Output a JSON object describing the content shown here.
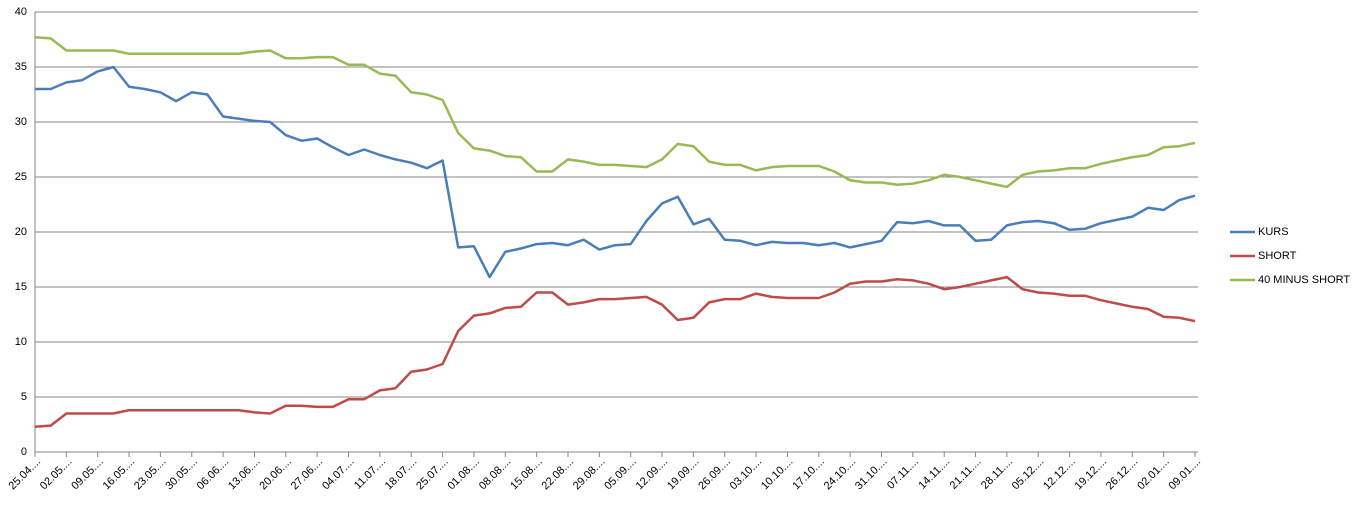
{
  "chart_data": {
    "type": "line",
    "categories": [
      "25.04....",
      null,
      "02.05....",
      null,
      "09.05....",
      null,
      "16.05....",
      null,
      "23.05....",
      null,
      "30.05....",
      null,
      "06.06....",
      null,
      "13.06....",
      null,
      "20.06....",
      null,
      "27.06....",
      null,
      "04.07....",
      null,
      "11.07....",
      null,
      "18.07....",
      null,
      "25.07....",
      null,
      "01.08....",
      null,
      "08.08....",
      null,
      "15.08....",
      null,
      "22.08....",
      null,
      "29.08....",
      null,
      "05.09....",
      null,
      "12.09....",
      null,
      "19.09....",
      null,
      "26.09....",
      null,
      "03.10....",
      null,
      "10.10....",
      null,
      "17.10....",
      null,
      "24.10....",
      null,
      "31.10....",
      null,
      "07.11....",
      null,
      "14.11....",
      null,
      "21.11....",
      null,
      "28.11....",
      null,
      "05.12....",
      null,
      "12.12....",
      null,
      "19.12....",
      null,
      "26.12....",
      null,
      "02.01....",
      null,
      "09.01...."
    ],
    "series": [
      {
        "name": "KURS",
        "color": "#4a7ebb",
        "values": [
          33.0,
          33.0,
          33.6,
          33.8,
          34.6,
          35.0,
          33.2,
          33.0,
          32.7,
          31.9,
          32.7,
          32.5,
          30.5,
          30.3,
          30.1,
          30.0,
          28.8,
          28.3,
          28.5,
          27.7,
          27.0,
          27.5,
          27.0,
          26.6,
          26.3,
          25.8,
          26.5,
          18.6,
          18.7,
          15.9,
          18.2,
          18.5,
          18.9,
          19.0,
          18.8,
          19.3,
          18.4,
          18.8,
          18.9,
          21.0,
          22.6,
          23.2,
          20.7,
          21.2,
          19.3,
          19.2,
          18.8,
          19.1,
          19.0,
          19.0,
          18.8,
          19.0,
          18.6,
          18.9,
          19.2,
          20.9,
          20.8,
          21.0,
          20.6,
          20.6,
          19.2,
          19.3,
          20.6,
          20.9,
          21.0,
          20.8,
          20.2,
          20.3,
          20.8,
          21.1,
          21.4,
          22.2,
          22.0,
          22.9,
          23.3
        ]
      },
      {
        "name": "SHORT",
        "color": "#be4b48",
        "values": [
          2.3,
          2.4,
          3.5,
          3.5,
          3.5,
          3.5,
          3.8,
          3.8,
          3.8,
          3.8,
          3.8,
          3.8,
          3.8,
          3.8,
          3.6,
          3.5,
          4.2,
          4.2,
          4.1,
          4.1,
          4.8,
          4.8,
          5.6,
          5.8,
          7.3,
          7.5,
          8.0,
          11.0,
          12.4,
          12.6,
          13.1,
          13.2,
          14.5,
          14.5,
          13.4,
          13.6,
          13.9,
          13.9,
          14.0,
          14.1,
          13.4,
          12.0,
          12.2,
          13.6,
          13.9,
          13.9,
          14.4,
          14.1,
          14.0,
          14.0,
          14.0,
          14.5,
          15.3,
          15.5,
          15.5,
          15.7,
          15.6,
          15.3,
          14.8,
          15.0,
          15.3,
          15.6,
          15.9,
          14.8,
          14.5,
          14.4,
          14.2,
          14.2,
          13.8,
          13.5,
          13.2,
          13.0,
          12.3,
          12.2,
          11.9
        ]
      },
      {
        "name": "40 MINUS SHORT",
        "color": "#98b954",
        "values": [
          37.7,
          37.6,
          36.5,
          36.5,
          36.5,
          36.5,
          36.2,
          36.2,
          36.2,
          36.2,
          36.2,
          36.2,
          36.2,
          36.2,
          36.4,
          36.5,
          35.8,
          35.8,
          35.9,
          35.9,
          35.2,
          35.2,
          34.4,
          34.2,
          32.7,
          32.5,
          32.0,
          29.0,
          27.6,
          27.4,
          26.9,
          26.8,
          25.5,
          25.5,
          26.6,
          26.4,
          26.1,
          26.1,
          26.0,
          25.9,
          26.6,
          28.0,
          27.8,
          26.4,
          26.1,
          26.1,
          25.6,
          25.9,
          26.0,
          26.0,
          26.0,
          25.5,
          24.7,
          24.5,
          24.5,
          24.3,
          24.4,
          24.7,
          25.2,
          25.0,
          24.7,
          24.4,
          24.1,
          25.2,
          25.5,
          25.6,
          25.8,
          25.8,
          26.2,
          26.5,
          26.8,
          27.0,
          27.7,
          27.8,
          28.1
        ]
      }
    ],
    "ylim": [
      0,
      40
    ],
    "yticks": [
      0,
      5,
      10,
      15,
      20,
      25,
      30,
      35,
      40
    ],
    "grid": true,
    "legend": "right"
  }
}
